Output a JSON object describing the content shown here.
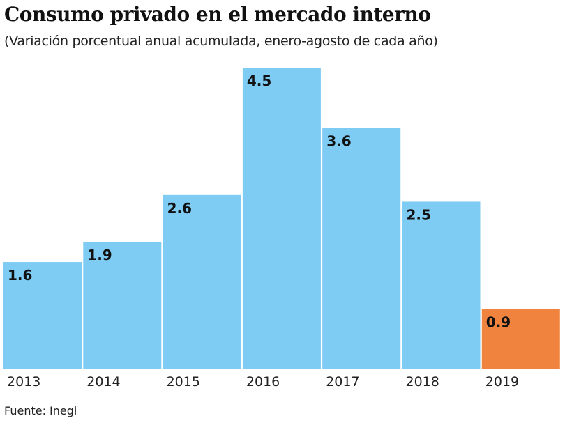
{
  "chart_data": {
    "type": "bar",
    "title": "Consumo privado en el mercado interno",
    "subtitle": "(Variación porcentual anual acumulada, enero-agosto de cada año)",
    "categories": [
      "2013",
      "2014",
      "2015",
      "2016",
      "2017",
      "2018",
      "2019"
    ],
    "values": [
      1.6,
      1.9,
      2.6,
      4.5,
      3.6,
      2.5,
      0.9
    ],
    "value_labels": [
      "1.6",
      "1.9",
      "2.6",
      "4.5",
      "3.6",
      "2.5",
      "0.9"
    ],
    "colors": [
      "#7ecbf3",
      "#7ecbf3",
      "#7ecbf3",
      "#7ecbf3",
      "#7ecbf3",
      "#7ecbf3",
      "#f0843f"
    ],
    "xlabel": "",
    "ylabel": "",
    "ylim": [
      0,
      4.5
    ],
    "grid": false,
    "source": "Fuente: Inegi"
  }
}
